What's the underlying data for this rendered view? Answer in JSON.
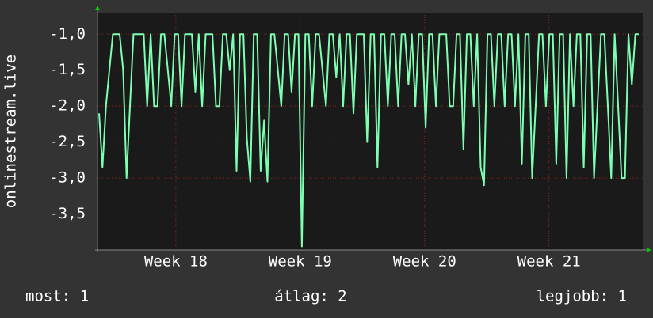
{
  "chart_data": {
    "type": "line",
    "y_label": "onlinestream.live",
    "color": "#7dffb2",
    "grid": true,
    "values": [
      -2.1,
      -2.85,
      -2.0,
      -1.5,
      -1.0,
      -1.0,
      -1.0,
      -1.5,
      -3.0,
      -2.0,
      -1.0,
      -1.0,
      -1.0,
      -1.0,
      -2.0,
      -1.0,
      -2.0,
      -2.0,
      -1.0,
      -1.0,
      -1.5,
      -2.0,
      -1.0,
      -1.0,
      -2.0,
      -1.0,
      -1.0,
      -1.0,
      -1.8,
      -1.0,
      -2.0,
      -1.0,
      -1.0,
      -1.0,
      -2.0,
      -2.0,
      -1.0,
      -1.0,
      -1.5,
      -1.0,
      -2.9,
      -1.0,
      -1.0,
      -2.45,
      -3.05,
      -1.0,
      -1.0,
      -2.9,
      -2.2,
      -3.05,
      -1.0,
      -1.0,
      -1.5,
      -2.0,
      -1.0,
      -1.0,
      -1.8,
      -1.0,
      -1.0,
      -3.95,
      -1.0,
      -1.0,
      -2.0,
      -1.0,
      -1.0,
      -1.5,
      -2.0,
      -1.0,
      -1.0,
      -1.6,
      -1.0,
      -2.0,
      -1.0,
      -1.0,
      -2.1,
      -1.0,
      -1.0,
      -1.0,
      -2.5,
      -1.0,
      -1.0,
      -2.85,
      -1.0,
      -1.0,
      -2.0,
      -1.0,
      -1.0,
      -2.0,
      -1.0,
      -1.0,
      -1.7,
      -1.0,
      -2.0,
      -1.0,
      -1.0,
      -2.3,
      -1.0,
      -1.0,
      -2.0,
      -1.0,
      -1.0,
      -1.0,
      -2.0,
      -2.0,
      -1.0,
      -1.0,
      -2.6,
      -1.0,
      -1.0,
      -2.0,
      -1.0,
      -2.85,
      -3.1,
      -1.0,
      -1.0,
      -2.0,
      -1.0,
      -1.0,
      -2.0,
      -1.0,
      -1.0,
      -2.0,
      -1.0,
      -2.8,
      -1.0,
      -1.0,
      -3.0,
      -2.0,
      -1.0,
      -1.0,
      -2.0,
      -1.0,
      -1.0,
      -2.8,
      -1.0,
      -1.0,
      -3.0,
      -1.0,
      -2.0,
      -1.0,
      -1.0,
      -2.85,
      -1.0,
      -1.0,
      -3.0,
      -2.0,
      -1.0,
      -1.0,
      -2.0,
      -3.0,
      -1.0,
      -2.0,
      -3.0,
      -3.0,
      -1.0,
      -1.7,
      -1.0,
      -1.0
    ],
    "ylim": [
      -4.0,
      -0.7
    ],
    "yticks": [
      {
        "value": -1.0,
        "label": "-1,0"
      },
      {
        "value": -1.5,
        "label": "-1,5"
      },
      {
        "value": -2.0,
        "label": "-2,0"
      },
      {
        "value": -2.5,
        "label": "-2,5"
      },
      {
        "value": -3.0,
        "label": "-3,0"
      },
      {
        "value": -3.5,
        "label": "-3,5"
      }
    ],
    "xlim": [
      17.37,
      21.76
    ],
    "xticks": [
      {
        "value": 18,
        "label": "Week 18"
      },
      {
        "value": 19,
        "label": "Week 19"
      },
      {
        "value": 20,
        "label": "Week 20"
      },
      {
        "value": 21,
        "label": "Week 21"
      }
    ],
    "stats": [
      "most: 1",
      "átlag: 2",
      "legjobb: 1"
    ]
  }
}
